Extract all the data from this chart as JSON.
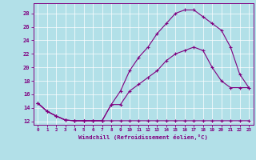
{
  "xlabel": "Windchill (Refroidissement éolien,°C)",
  "bg_color": "#b2e0e8",
  "grid_color": "#ffffff",
  "line_color": "#800080",
  "xlim": [
    -0.5,
    23.5
  ],
  "ylim": [
    11.5,
    29.5
  ],
  "yticks": [
    12,
    14,
    16,
    18,
    20,
    22,
    24,
    26,
    28
  ],
  "xticks": [
    0,
    1,
    2,
    3,
    4,
    5,
    6,
    7,
    8,
    9,
    10,
    11,
    12,
    13,
    14,
    15,
    16,
    17,
    18,
    19,
    20,
    21,
    22,
    23
  ],
  "line1_x": [
    0,
    1,
    2,
    3,
    4,
    5,
    6,
    7,
    8,
    9,
    10,
    11,
    12,
    13,
    14,
    15,
    16,
    17,
    18,
    19,
    20,
    21,
    22,
    23
  ],
  "line1_y": [
    14.7,
    13.5,
    12.8,
    12.2,
    12.1,
    12.1,
    12.1,
    12.1,
    12.1,
    12.1,
    12.1,
    12.1,
    12.1,
    12.1,
    12.1,
    12.1,
    12.1,
    12.1,
    12.1,
    12.1,
    12.1,
    12.1,
    12.1,
    12.1
  ],
  "line2_x": [
    0,
    1,
    2,
    3,
    4,
    5,
    6,
    7,
    8,
    9,
    10,
    11,
    12,
    13,
    14,
    15,
    16,
    17,
    18,
    19,
    20,
    21,
    22,
    23
  ],
  "line2_y": [
    14.7,
    13.5,
    12.8,
    12.2,
    12.1,
    12.1,
    12.1,
    12.1,
    14.5,
    14.5,
    16.5,
    17.5,
    18.5,
    19.5,
    21.0,
    22.0,
    22.5,
    23.0,
    22.5,
    20.0,
    18.0,
    17.0,
    17.0,
    17.0
  ],
  "line3_x": [
    0,
    1,
    2,
    3,
    4,
    5,
    6,
    7,
    8,
    9,
    10,
    11,
    12,
    13,
    14,
    15,
    16,
    17,
    18,
    19,
    20,
    21,
    22,
    23
  ],
  "line3_y": [
    14.7,
    13.5,
    12.8,
    12.2,
    12.1,
    12.1,
    12.1,
    12.1,
    14.5,
    16.5,
    19.5,
    21.5,
    23.0,
    25.0,
    26.5,
    28.0,
    28.5,
    28.5,
    27.5,
    26.5,
    25.5,
    23.0,
    19.0,
    17.0
  ]
}
